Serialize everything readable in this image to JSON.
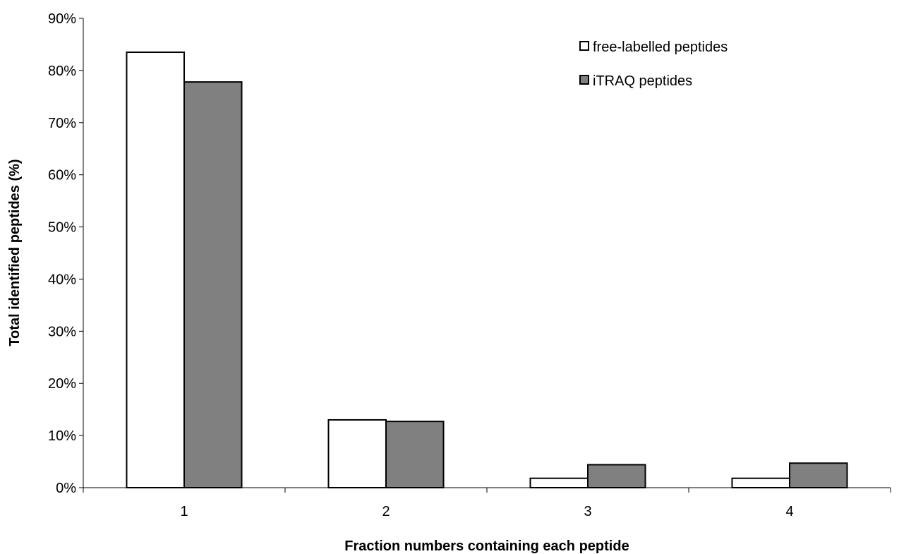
{
  "chart_data": {
    "type": "bar",
    "title": "",
    "xlabel": "Fraction numbers containing each peptide",
    "ylabel": "Total identified peptides (%)",
    "categories": [
      "1",
      "2",
      "3",
      "4"
    ],
    "ylim": [
      0,
      90
    ],
    "yticks": [
      0,
      10,
      20,
      30,
      40,
      50,
      60,
      70,
      80,
      90
    ],
    "ytick_labels": [
      "0%",
      "10%",
      "20%",
      "30%",
      "40%",
      "50%",
      "60%",
      "70%",
      "80%",
      "90%"
    ],
    "grid": false,
    "legend_position": "top-right",
    "series": [
      {
        "name": "free-labelled peptides",
        "values": [
          83.5,
          13.0,
          1.8,
          1.8
        ],
        "color": "#ffffff"
      },
      {
        "name": "iTRAQ peptides",
        "values": [
          77.8,
          12.7,
          4.4,
          4.7
        ],
        "color": "#808080"
      }
    ]
  }
}
